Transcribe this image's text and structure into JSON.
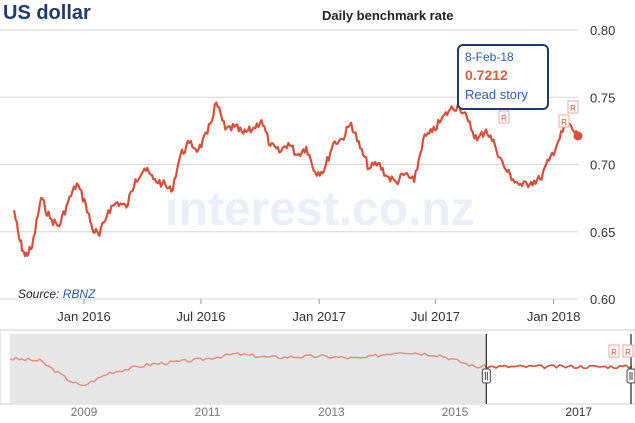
{
  "header": {
    "title": "US dollar",
    "subtitle": "Daily benchmark rate"
  },
  "source": {
    "label": "Source:",
    "link": "RBNZ"
  },
  "watermark": "interest.co.nz",
  "tooltip": {
    "date": "8-Feb-18",
    "value": "0.7212",
    "link": "Read story"
  },
  "colors": {
    "line": "#d9503a",
    "navigator_line": "#e38f80",
    "title": "#1f3a6b",
    "navigator_bg": "#e6e6e6"
  },
  "flag_marker": "R",
  "chart_data": {
    "type": "line",
    "title": "Daily benchmark rate",
    "ylim": [
      0.6,
      0.8
    ],
    "yticks": [
      "0.80",
      "0.75",
      "0.70",
      "0.65",
      "0.60"
    ],
    "xticks": [
      "Jan 2016",
      "Jul 2016",
      "Jan 2017",
      "Jul 2017",
      "Jan 2018"
    ],
    "x_range": [
      "2015-09-14",
      "2018-02-08"
    ],
    "grid": true,
    "series": [
      {
        "x": [
          "2015-09-14",
          "2015-09-22",
          "2015-10-01",
          "2015-10-12",
          "2015-10-26",
          "2015-11-09",
          "2015-11-23",
          "2015-12-07",
          "2015-12-21",
          "2016-01-04",
          "2016-01-14",
          "2016-01-25",
          "2016-02-08",
          "2016-02-22",
          "2016-03-07",
          "2016-03-21",
          "2016-04-04",
          "2016-04-18",
          "2016-05-02",
          "2016-05-16",
          "2016-05-30",
          "2016-06-13",
          "2016-06-27",
          "2016-07-11",
          "2016-07-25",
          "2016-08-08",
          "2016-08-22",
          "2016-09-05",
          "2016-09-19",
          "2016-10-03",
          "2016-10-17",
          "2016-10-31",
          "2016-11-14",
          "2016-11-28",
          "2016-12-12",
          "2016-12-26",
          "2017-01-09",
          "2017-01-23",
          "2017-02-06",
          "2017-02-20",
          "2017-03-06",
          "2017-03-20",
          "2017-04-03",
          "2017-04-17",
          "2017-05-01",
          "2017-05-15",
          "2017-05-29",
          "2017-06-12",
          "2017-06-26",
          "2017-07-10",
          "2017-07-24",
          "2017-08-07",
          "2017-08-21",
          "2017-09-04",
          "2017-09-18",
          "2017-10-02",
          "2017-10-16",
          "2017-10-30",
          "2017-11-13",
          "2017-11-27",
          "2017-12-11",
          "2017-12-25",
          "2018-01-08",
          "2018-01-22",
          "2018-02-08"
        ],
        "values": [
          0.666,
          0.645,
          0.632,
          0.638,
          0.675,
          0.66,
          0.654,
          0.672,
          0.686,
          0.67,
          0.652,
          0.647,
          0.666,
          0.672,
          0.668,
          0.689,
          0.697,
          0.689,
          0.686,
          0.68,
          0.707,
          0.716,
          0.711,
          0.723,
          0.746,
          0.726,
          0.728,
          0.723,
          0.726,
          0.733,
          0.714,
          0.709,
          0.716,
          0.707,
          0.713,
          0.694,
          0.696,
          0.716,
          0.719,
          0.731,
          0.712,
          0.697,
          0.701,
          0.691,
          0.687,
          0.693,
          0.687,
          0.719,
          0.724,
          0.733,
          0.741,
          0.744,
          0.732,
          0.718,
          0.726,
          0.714,
          0.698,
          0.689,
          0.684,
          0.687,
          0.689,
          0.703,
          0.717,
          0.731,
          0.7212
        ]
      }
    ],
    "navigator": {
      "xticks": [
        "2009",
        "2011",
        "2013",
        "2015",
        "2017"
      ],
      "x_range": [
        "2008-01-01",
        "2018-02-08"
      ],
      "selected_range": [
        "2015-09-14",
        "2018-02-08"
      ]
    }
  }
}
